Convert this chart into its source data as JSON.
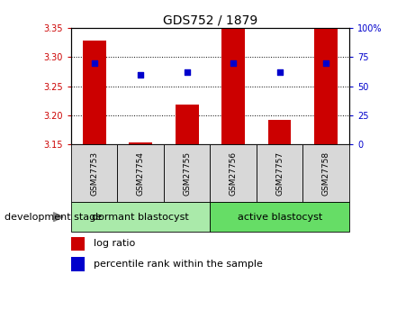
{
  "title": "GDS752 / 1879",
  "samples": [
    "GSM27753",
    "GSM27754",
    "GSM27755",
    "GSM27756",
    "GSM27757",
    "GSM27758"
  ],
  "log_ratios": [
    3.328,
    3.153,
    3.218,
    3.348,
    3.192,
    3.352
  ],
  "percentile_ranks": [
    70,
    60,
    62,
    70,
    62,
    70
  ],
  "baseline": 3.15,
  "ylim_left": [
    3.15,
    3.35
  ],
  "ylim_right": [
    0,
    100
  ],
  "yticks_left": [
    3.15,
    3.2,
    3.25,
    3.3,
    3.35
  ],
  "yticks_right": [
    0,
    25,
    50,
    75,
    100
  ],
  "groups": [
    {
      "label": "dormant blastocyst",
      "indices": [
        0,
        1,
        2
      ],
      "color": "#aaeaaa"
    },
    {
      "label": "active blastocyst",
      "indices": [
        3,
        4,
        5
      ],
      "color": "#66dd66"
    }
  ],
  "group_label": "development stage",
  "bar_color": "#cc0000",
  "dot_color": "#0000cc",
  "bar_width": 0.5,
  "legend_labels": [
    "log ratio",
    "percentile rank within the sample"
  ],
  "legend_colors": [
    "#cc0000",
    "#0000cc"
  ],
  "tick_label_color_left": "#cc0000",
  "tick_label_color_right": "#0000cc",
  "grid_color": "black",
  "sample_bg_color": "#d8d8d8",
  "plot_bg_color": "#ffffff"
}
